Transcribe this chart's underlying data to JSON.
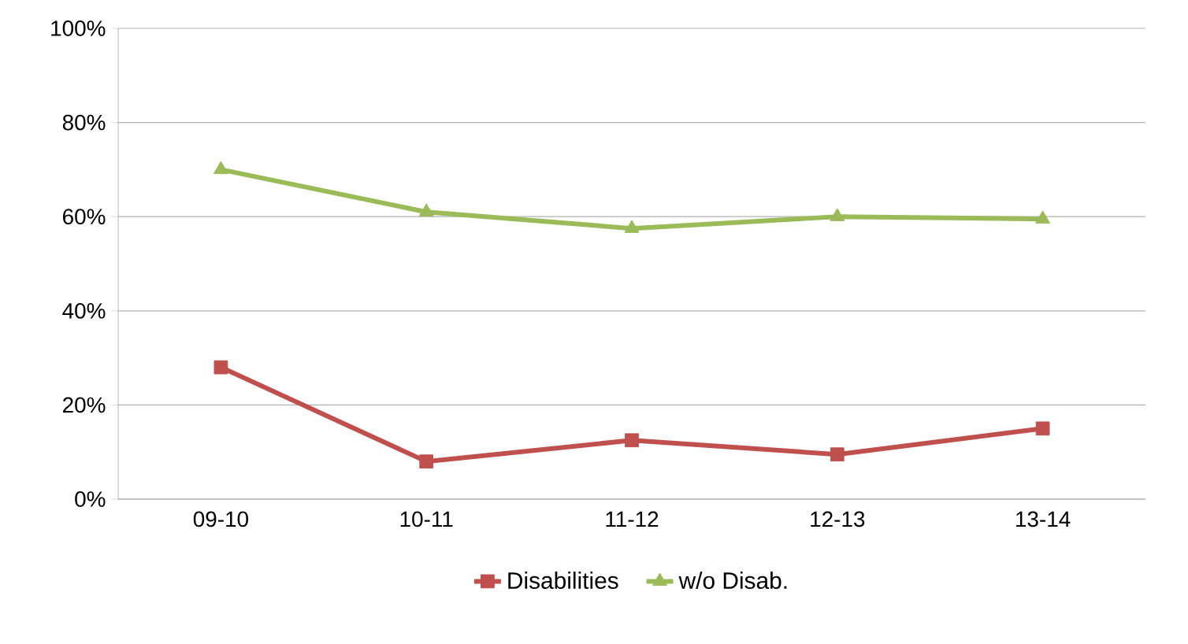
{
  "chart_data": {
    "type": "line",
    "categories": [
      "09-10",
      "10-11",
      "11-12",
      "12-13",
      "13-14"
    ],
    "series": [
      {
        "name": "Disabilities",
        "color": "#c0504d",
        "marker": "square",
        "values": [
          28,
          8,
          12.5,
          9.5,
          15
        ]
      },
      {
        "name": "w/o Disab.",
        "color": "#9bbb59",
        "marker": "triangle",
        "values": [
          70,
          61,
          57.5,
          60,
          59.5
        ]
      }
    ],
    "ylim": [
      0,
      100
    ],
    "yticks": [
      {
        "value": 0,
        "label": "0%"
      },
      {
        "value": 20,
        "label": "20%"
      },
      {
        "value": 40,
        "label": "40%"
      },
      {
        "value": 60,
        "label": "60%"
      },
      {
        "value": 80,
        "label": "80%"
      },
      {
        "value": 100,
        "label": "100%"
      }
    ],
    "grid": "y",
    "legend": "bottom",
    "line_style": "solid"
  }
}
